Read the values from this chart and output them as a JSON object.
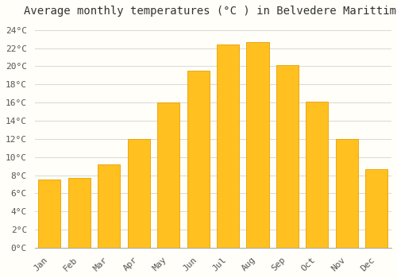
{
  "title": "Average monthly temperatures (°C ) in Belvedere Marittimo",
  "months": [
    "Jan",
    "Feb",
    "Mar",
    "Apr",
    "May",
    "Jun",
    "Jul",
    "Aug",
    "Sep",
    "Oct",
    "Nov",
    "Dec"
  ],
  "values": [
    7.5,
    7.7,
    9.2,
    12.0,
    16.0,
    19.5,
    22.4,
    22.7,
    20.1,
    16.1,
    12.0,
    8.7
  ],
  "bar_color": "#FFC020",
  "bar_edge_color": "#E8A000",
  "ylim": [
    0,
    25
  ],
  "background_color": "#fffef8",
  "grid_color": "#d8d8d8",
  "title_fontsize": 10,
  "tick_fontsize": 8,
  "font_family": "monospace"
}
